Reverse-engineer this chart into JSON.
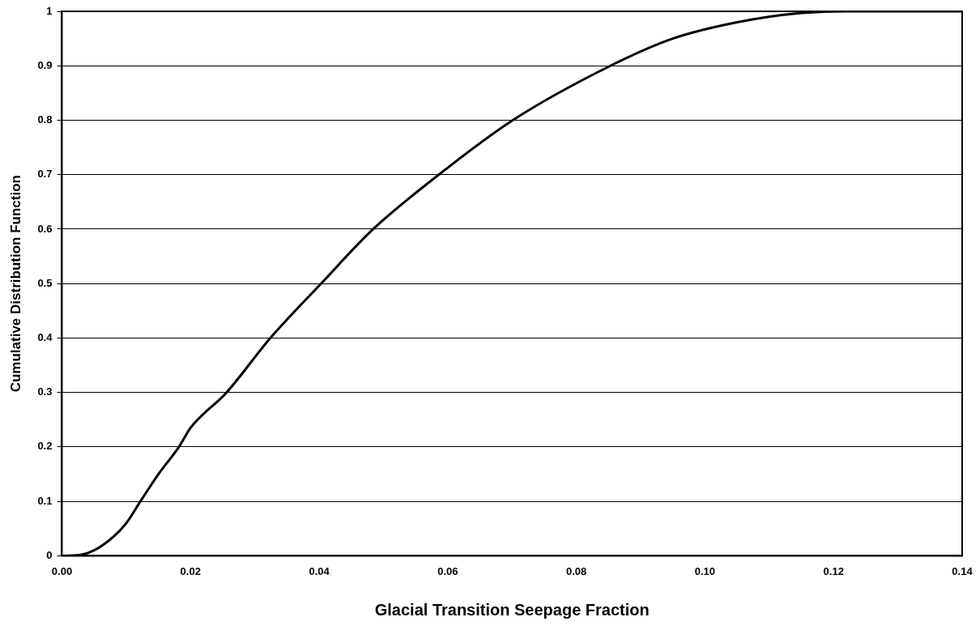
{
  "chart_data": {
    "type": "line",
    "xlabel": "Glacial Transition Seepage Fraction",
    "ylabel": "Cumulative Distribution Function",
    "x": [
      0,
      0.003,
      0.005,
      0.008,
      0.01,
      0.0122,
      0.015,
      0.0182,
      0.02,
      0.0256,
      0.0324,
      0.0403,
      0.0484,
      0.0586,
      0.0701,
      0.0853,
      0.095,
      0.105,
      0.115,
      0.122,
      0.14
    ],
    "series": [
      {
        "color": "#000000",
        "values": [
          0,
          0.002,
          0.01,
          0.035,
          0.06,
          0.1,
          0.15,
          0.2,
          0.235,
          0.3,
          0.4,
          0.5,
          0.6,
          0.7,
          0.8,
          0.9,
          0.95,
          0.98,
          0.997,
          1,
          1
        ]
      }
    ],
    "xlim": [
      0,
      0.14
    ],
    "ylim": [
      0,
      1
    ],
    "xticks": [
      {
        "value": 0,
        "label": "0.00"
      },
      {
        "value": 0.02,
        "label": "0.02"
      },
      {
        "value": 0.04,
        "label": "0.04"
      },
      {
        "value": 0.06,
        "label": "0.06"
      },
      {
        "value": 0.08,
        "label": "0.08"
      },
      {
        "value": 0.1,
        "label": "0.10"
      },
      {
        "value": 0.12,
        "label": "0.12"
      },
      {
        "value": 0.14,
        "label": "0.14"
      }
    ],
    "yticks": [
      0,
      0.1,
      0.2,
      0.3,
      0.4,
      0.5,
      0.6,
      0.7,
      0.8,
      0.9,
      1
    ],
    "grid": "y",
    "legend": false,
    "marker": "none",
    "line_style": "solid"
  }
}
